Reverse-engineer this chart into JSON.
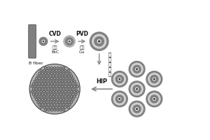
{
  "bg_color": "#ffffff",
  "dark_gray": "#444444",
  "mid_gray": "#808080",
  "light_gray": "#b0b0b0",
  "very_light_gray": "#d0d0d0",
  "white": "#ffffff",
  "arrow_color": "#888888",
  "text_color": "#111111",
  "step1_label": "B fiber",
  "step2_top": "CVD",
  "step3_top": "PVD",
  "step5_label": "HIP"
}
